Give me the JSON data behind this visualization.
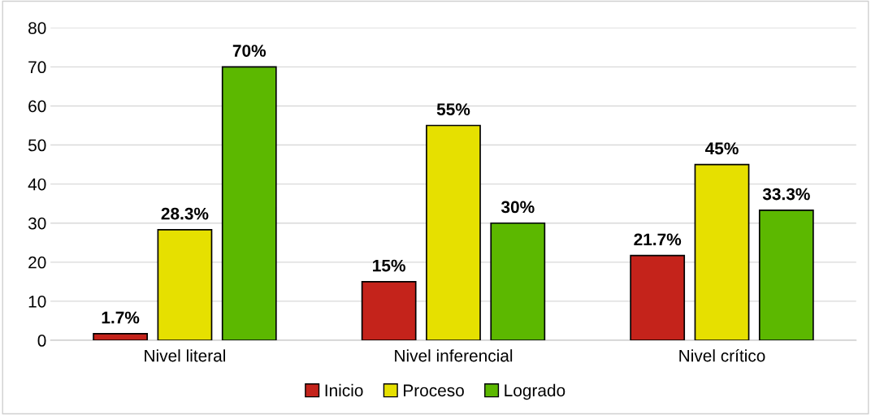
{
  "chart_data": {
    "type": "bar",
    "categories": [
      "Nivel literal",
      "Nivel inferencial",
      "Nivel crítico"
    ],
    "series": [
      {
        "name": "Inicio",
        "color": "#c4231b",
        "values": [
          1.7,
          15,
          21.7
        ],
        "value_labels": [
          "1.7%",
          "15%",
          "21.7%"
        ]
      },
      {
        "name": "Proceso",
        "color": "#e6e000",
        "values": [
          28.3,
          55,
          45
        ],
        "value_labels": [
          "28.3%",
          "55%",
          "45%"
        ]
      },
      {
        "name": "Logrado",
        "color": "#5cb800",
        "values": [
          70,
          30,
          33.3
        ],
        "value_labels": [
          "70%",
          "30%",
          "33.3%"
        ]
      }
    ],
    "ylim": [
      0,
      80
    ],
    "yticks": [
      0,
      10,
      20,
      30,
      40,
      50,
      60,
      70,
      80
    ],
    "grid": "y",
    "legend": "bottom"
  }
}
